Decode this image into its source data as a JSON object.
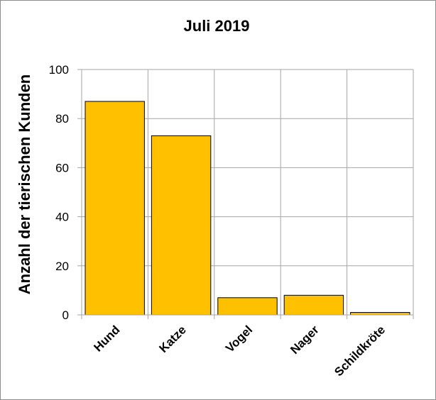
{
  "chart_data": {
    "type": "bar",
    "title": "Juli 2019",
    "ylabel": "Anzahl der tierischen Kunden",
    "xlabel": "",
    "categories": [
      "Hund",
      "Katze",
      "Vogel",
      "Nager",
      "Schildkröte"
    ],
    "values": [
      87,
      73,
      7,
      8,
      1
    ],
    "ylim": [
      0,
      100
    ],
    "yticks": [
      "0",
      "20",
      "40",
      "60",
      "80",
      "100"
    ],
    "grid": true,
    "legend": "none",
    "colors": {
      "bar": "#FFC000",
      "bar_outline": "#000000",
      "grid": "#A6A6A6"
    }
  }
}
